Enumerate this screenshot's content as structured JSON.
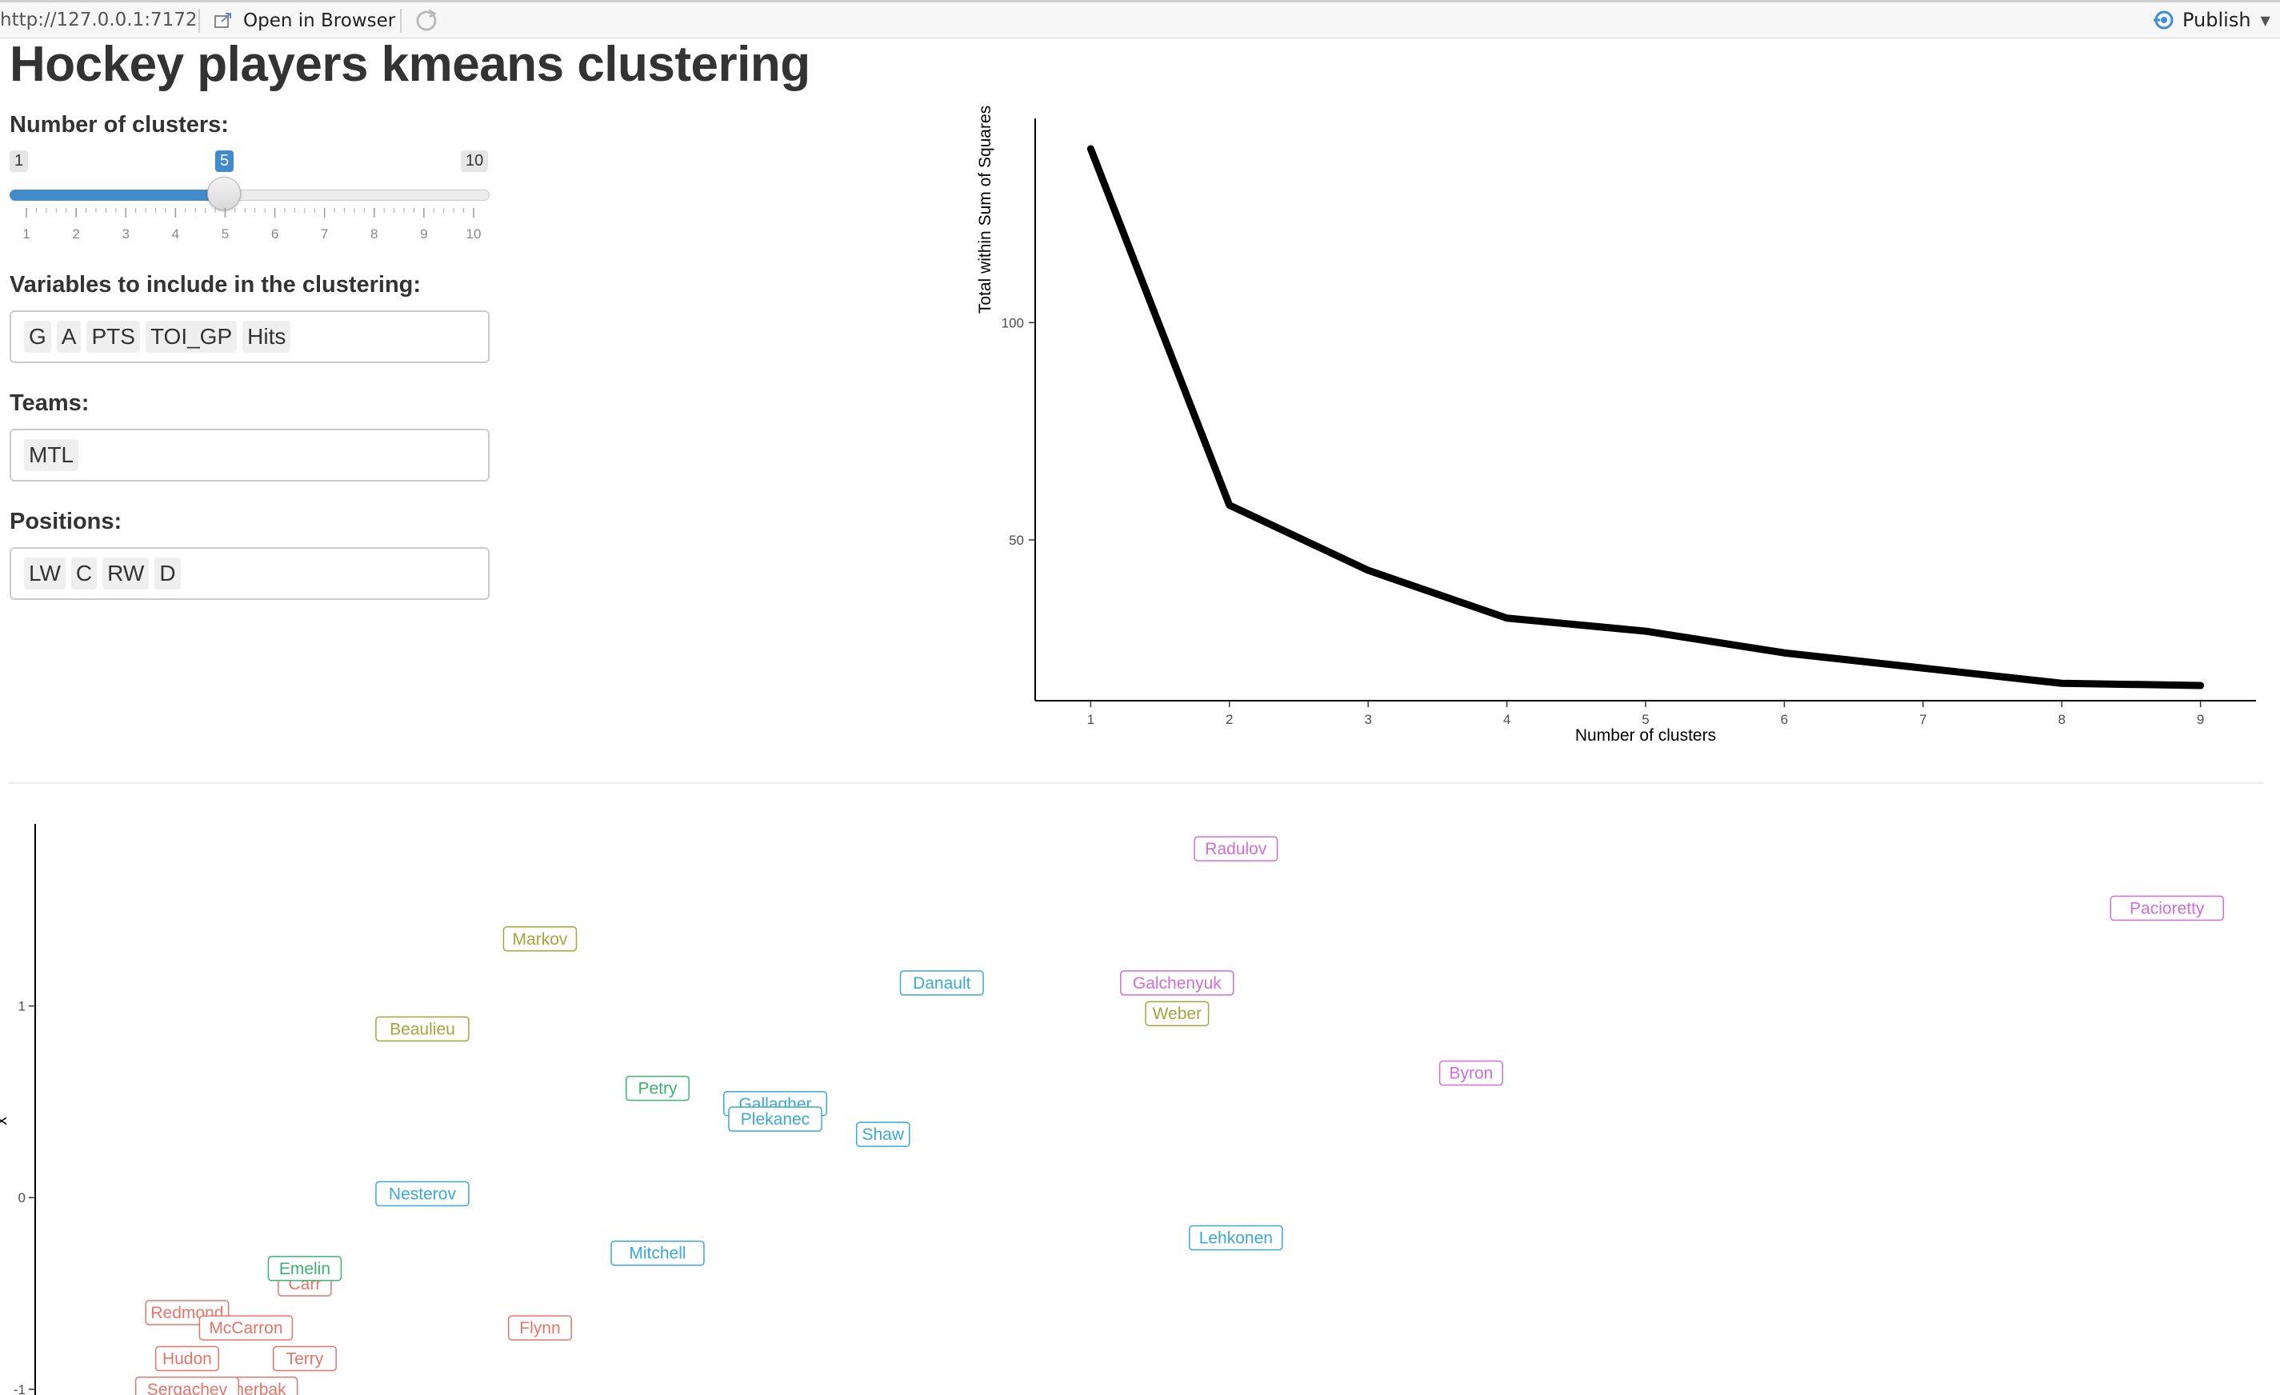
{
  "topbar": {
    "url": "http://127.0.0.1:7172",
    "open_label": "Open in Browser",
    "publish_label": "Publish"
  },
  "page": {
    "title": "Hockey players kmeans clustering"
  },
  "controls": {
    "clusters": {
      "label": "Number of clusters:",
      "min": 1,
      "max": 10,
      "value": 5,
      "min_label": "1",
      "max_label": "10",
      "value_label": "5",
      "ticks": [
        "1",
        "2",
        "3",
        "4",
        "5",
        "6",
        "7",
        "8",
        "9",
        "10"
      ]
    },
    "variables": {
      "label": "Variables to include in the clustering:",
      "selected": [
        "G",
        "A",
        "PTS",
        "TOI_GP",
        "Hits"
      ]
    },
    "teams": {
      "label": "Teams:",
      "selected": [
        "MTL"
      ]
    },
    "positions": {
      "label": "Positions:",
      "selected": [
        "LW",
        "C",
        "RW",
        "D"
      ]
    }
  },
  "chart_data": [
    {
      "type": "line",
      "title": "",
      "xlabel": "Number of clusters",
      "ylabel": "Total within Sum of Squares",
      "x": [
        1,
        2,
        3,
        4,
        5,
        6,
        7,
        8,
        9
      ],
      "values": [
        140,
        58,
        43,
        32,
        29,
        24,
        20.5,
        17,
        16.5
      ],
      "xlim": [
        0.6,
        9.4
      ],
      "ylim": [
        13,
        147
      ],
      "x_ticks": [
        "1",
        "2",
        "3",
        "4",
        "5",
        "6",
        "7",
        "8",
        "9"
      ],
      "y_ticks": [
        50,
        100
      ],
      "y_tick_labels": [
        "50",
        "100"
      ],
      "line_color": "#000000"
    },
    {
      "type": "scatter",
      "title": "",
      "xlabel": "",
      "ylabel": "x",
      "ylim": [
        -1.03,
        1.95
      ],
      "xlim": [
        -0.25,
        4.2
      ],
      "y_ticks": [
        -1,
        0,
        1
      ],
      "y_tick_labels": [
        "-1",
        "0",
        "1"
      ],
      "cluster_colors": {
        "1": "#e8746b",
        "2": "#a3a53d",
        "3": "#3cb371",
        "4": "#3aa8d8",
        "5": "#d16ed9"
      },
      "points": [
        {
          "label": "Radulov",
          "x": 2.2,
          "y": 1.82,
          "cluster": "5"
        },
        {
          "label": "Pacioretty",
          "x": 4.1,
          "y": 1.51,
          "cluster": "5"
        },
        {
          "label": "Markov",
          "x": 0.78,
          "y": 1.35,
          "cluster": "2"
        },
        {
          "label": "Danault",
          "x": 1.6,
          "y": 1.12,
          "cluster": "4"
        },
        {
          "label": "Galchenyuk",
          "x": 2.08,
          "y": 1.12,
          "cluster": "5"
        },
        {
          "label": "Weber",
          "x": 2.08,
          "y": 0.96,
          "cluster": "2"
        },
        {
          "label": "Beaulieu",
          "x": 0.54,
          "y": 0.88,
          "cluster": "2"
        },
        {
          "label": "Byron",
          "x": 2.68,
          "y": 0.65,
          "cluster": "5"
        },
        {
          "label": "Petry",
          "x": 1.02,
          "y": 0.57,
          "cluster": "3"
        },
        {
          "label": "Gallagher",
          "x": 1.26,
          "y": 0.49,
          "cluster": "4"
        },
        {
          "label": "Plekanec",
          "x": 1.26,
          "y": 0.41,
          "cluster": "4"
        },
        {
          "label": "Shaw",
          "x": 1.48,
          "y": 0.33,
          "cluster": "4"
        },
        {
          "label": "Nesterov",
          "x": 0.54,
          "y": 0.02,
          "cluster": "4"
        },
        {
          "label": "Lehkonen",
          "x": 2.2,
          "y": -0.21,
          "cluster": "4"
        },
        {
          "label": "Mitchell",
          "x": 1.02,
          "y": -0.29,
          "cluster": "4"
        },
        {
          "label": "Carr",
          "x": 0.3,
          "y": -0.45,
          "cluster": "1"
        },
        {
          "label": "Emelin",
          "x": 0.3,
          "y": -0.37,
          "cluster": "3"
        },
        {
          "label": "Redmond",
          "x": 0.06,
          "y": -0.6,
          "cluster": "1"
        },
        {
          "label": "McCarron",
          "x": 0.18,
          "y": -0.68,
          "cluster": "1"
        },
        {
          "label": "Flynn",
          "x": 0.78,
          "y": -0.68,
          "cluster": "1"
        },
        {
          "label": "Hudon",
          "x": 0.06,
          "y": -0.84,
          "cluster": "1"
        },
        {
          "label": "Terry",
          "x": 0.3,
          "y": -0.84,
          "cluster": "1"
        },
        {
          "label": "Shcherbak",
          "x": 0.18,
          "y": -1.0,
          "cluster": "1"
        },
        {
          "label": "Sergachev",
          "x": 0.06,
          "y": -1.0,
          "cluster": "1"
        }
      ]
    }
  ]
}
